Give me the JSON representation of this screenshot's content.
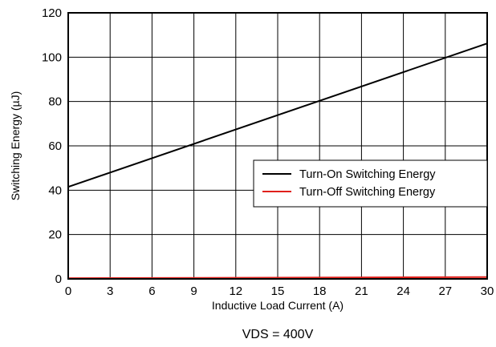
{
  "chart_data": {
    "type": "line",
    "xlabel": "Inductive Load Current (A)",
    "ylabel": "Switching Energy (µJ)",
    "caption": "VDS = 400V",
    "xlim": [
      0,
      30
    ],
    "ylim": [
      0,
      120
    ],
    "xticks": [
      0,
      3,
      6,
      9,
      12,
      15,
      18,
      21,
      24,
      27,
      30
    ],
    "yticks": [
      0,
      20,
      40,
      60,
      80,
      100,
      120
    ],
    "grid": true,
    "legend_position": "center-right",
    "series": [
      {
        "name": "Turn-On Switching Energy",
        "color": "#000000",
        "x": [
          0,
          30
        ],
        "y": [
          41.5,
          106.2
        ]
      },
      {
        "name": "Turn-Off Switching Energy",
        "color": "#e0201b",
        "x": [
          0,
          30
        ],
        "y": [
          0.3,
          0.8
        ]
      }
    ]
  }
}
